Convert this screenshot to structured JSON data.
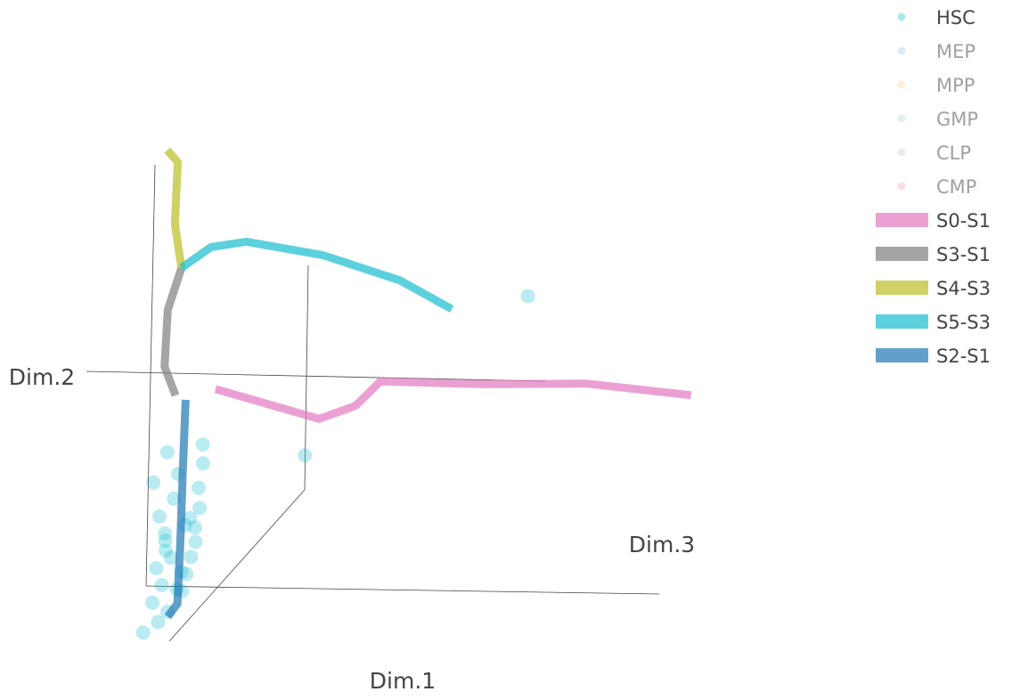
{
  "chart_data": {
    "type": "scatter3d",
    "axes": {
      "x": {
        "title": "Dim.1"
      },
      "y": {
        "title": "Dim.2"
      },
      "z": {
        "title": "Dim.3"
      }
    },
    "legend": {
      "placement": "top-right",
      "entries": [
        {
          "name": "HSC",
          "kind": "marker",
          "color": "#17becf",
          "visible": true
        },
        {
          "name": "MEP",
          "kind": "marker",
          "color": "#1f77b4",
          "visible": false
        },
        {
          "name": "MPP",
          "kind": "marker",
          "color": "#ff7f0e",
          "visible": false
        },
        {
          "name": "GMP",
          "kind": "marker",
          "color": "#2ca02c",
          "visible": false
        },
        {
          "name": "CLP",
          "kind": "marker",
          "color": "#7f7f7f",
          "visible": false
        },
        {
          "name": "CMP",
          "kind": "marker",
          "color": "#d62728",
          "visible": false
        },
        {
          "name": "S0-S1",
          "kind": "line",
          "color": "#e377c2",
          "visible": true
        },
        {
          "name": "S3-S1",
          "kind": "line",
          "color": "#7f7f7f",
          "visible": true
        },
        {
          "name": "S4-S3",
          "kind": "line",
          "color": "#bcbd22",
          "visible": true
        },
        {
          "name": "S5-S3",
          "kind": "line",
          "color": "#17becf",
          "visible": true
        },
        {
          "name": "S2-S1",
          "kind": "line",
          "color": "#1f77b4",
          "visible": true
        }
      ]
    },
    "trajectories": [
      {
        "name": "S0-S1",
        "color": "#e377c2",
        "points": [
          [
            0.08,
            0.02,
            0.02
          ],
          [
            0.28,
            -0.1,
            0.18
          ],
          [
            0.35,
            -0.04,
            0.28
          ],
          [
            0.4,
            0.06,
            0.32
          ],
          [
            0.6,
            0.05,
            0.48
          ],
          [
            0.8,
            0.06,
            0.68
          ],
          [
            1.0,
            0.03,
            0.95
          ]
        ]
      },
      {
        "name": "S3-S1",
        "color": "#7f7f7f",
        "points": [
          [
            0.0,
            0.0,
            0.0
          ],
          [
            -0.02,
            0.12,
            0.0
          ],
          [
            -0.01,
            0.35,
            0.0
          ],
          [
            0.02,
            0.52,
            0.01
          ]
        ]
      },
      {
        "name": "S4-S3",
        "color": "#bcbd22",
        "points": [
          [
            0.02,
            0.52,
            0.01
          ],
          [
            0.01,
            0.7,
            0.0
          ],
          [
            0.02,
            0.95,
            0.0
          ],
          [
            0.0,
            1.0,
            -0.01
          ]
        ]
      },
      {
        "name": "S5-S3",
        "color": "#17becf",
        "points": [
          [
            0.02,
            0.52,
            0.01
          ],
          [
            0.08,
            0.6,
            0.02
          ],
          [
            0.15,
            0.62,
            0.06
          ],
          [
            0.3,
            0.56,
            0.14
          ],
          [
            0.45,
            0.45,
            0.2
          ],
          [
            0.55,
            0.33,
            0.26
          ]
        ]
      },
      {
        "name": "S2-S1",
        "color": "#1f77b4",
        "points": [
          [
            0.02,
            -0.02,
            0.0
          ],
          [
            0.01,
            -0.3,
            0.0
          ],
          [
            0.0,
            -0.6,
            0.0
          ],
          [
            -0.01,
            -0.85,
            0.0
          ],
          [
            -0.03,
            -0.9,
            0.0
          ]
        ]
      }
    ],
    "markers": [
      {
        "name": "HSC",
        "color": "#17becf",
        "opacity": 0.3,
        "points": [
          [
            0.7,
            0.38,
            0.35
          ],
          [
            0.25,
            -0.25,
            0.15
          ],
          [
            0.05,
            -0.2,
            0.04
          ],
          [
            -0.02,
            -0.23,
            0.0
          ],
          [
            0.05,
            -0.28,
            0.02
          ],
          [
            0.0,
            -0.32,
            0.0
          ],
          [
            -0.05,
            -0.35,
            0.0
          ],
          [
            0.04,
            -0.38,
            0.01
          ],
          [
            -0.01,
            -0.42,
            0.0
          ],
          [
            0.04,
            -0.46,
            0.03
          ],
          [
            -0.04,
            -0.49,
            0.0
          ],
          [
            0.01,
            -0.53,
            0.01
          ],
          [
            -0.03,
            -0.56,
            0.0
          ],
          [
            0.03,
            -0.6,
            0.01
          ],
          [
            -0.03,
            -0.63,
            0.0
          ],
          [
            0.02,
            -0.66,
            0.01
          ],
          [
            -0.05,
            -0.7,
            0.0
          ],
          [
            0.01,
            -0.73,
            0.0
          ],
          [
            -0.04,
            -0.77,
            0.0
          ],
          [
            0.0,
            -0.8,
            0.0
          ],
          [
            -0.06,
            -0.84,
            0.0
          ],
          [
            -0.03,
            -0.88,
            0.0
          ],
          [
            -0.05,
            -0.92,
            0.0
          ],
          [
            -0.08,
            -0.96,
            0.0
          ],
          [
            0.02,
            -0.5,
            0.02
          ],
          [
            -0.02,
            -0.66,
            0.0
          ],
          [
            0.0,
            -0.72,
            0.0
          ],
          [
            -0.03,
            -0.59,
            0.0
          ],
          [
            0.03,
            -0.54,
            0.02
          ],
          [
            -0.01,
            -0.79,
            0.0
          ]
        ]
      }
    ]
  }
}
